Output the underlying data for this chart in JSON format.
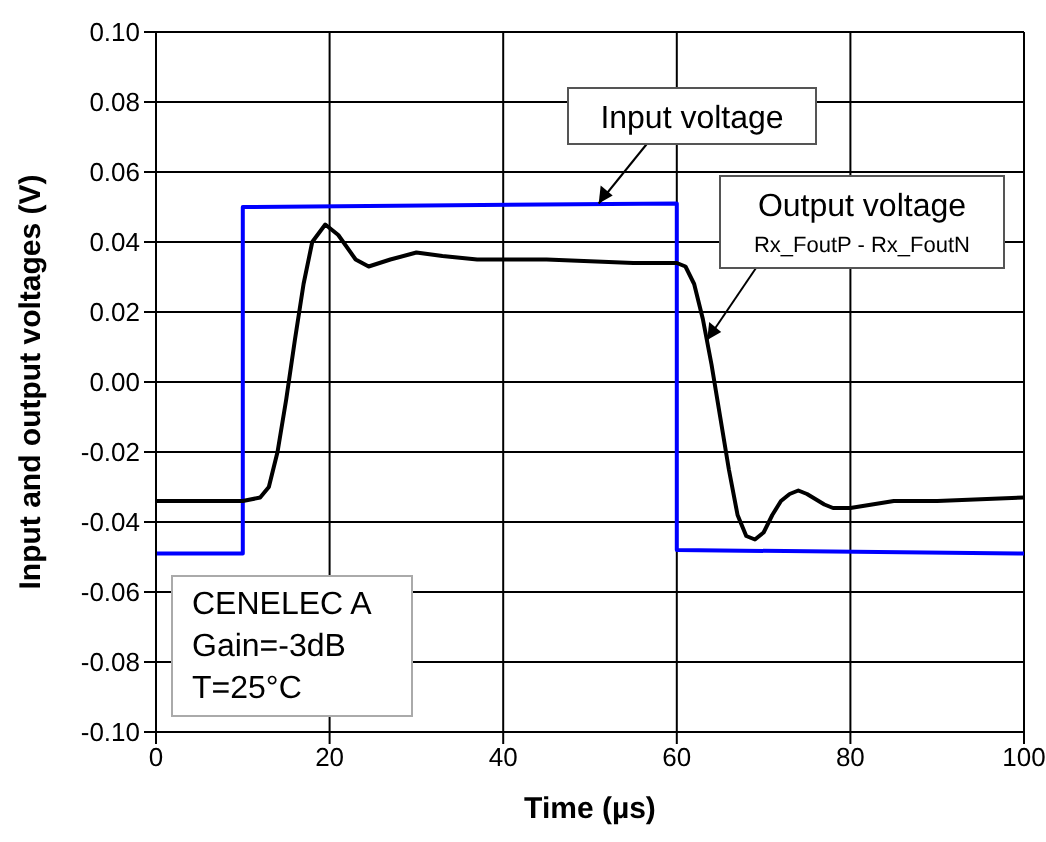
{
  "chart_data": {
    "type": "line",
    "xlabel": "Time (µs)",
    "ylabel": "Input and output voltages (V)",
    "xlim": [
      0,
      100
    ],
    "xticks": [
      0,
      20,
      40,
      60,
      80,
      100
    ],
    "ylim": [
      -0.1,
      0.1
    ],
    "yticks": [
      {
        "value": -0.1,
        "label": "-0.10"
      },
      {
        "value": -0.08,
        "label": "-0.08"
      },
      {
        "value": -0.06,
        "label": "-0.06"
      },
      {
        "value": -0.04,
        "label": "-0.04"
      },
      {
        "value": -0.02,
        "label": "-0.02"
      },
      {
        "value": 0,
        "label": "0.00"
      },
      {
        "value": 0.02,
        "label": "0.02"
      },
      {
        "value": 0.04,
        "label": "0.04"
      },
      {
        "value": 0.06,
        "label": "0.06"
      },
      {
        "value": 0.08,
        "label": "0.08"
      },
      {
        "value": 0.1,
        "label": "0.10"
      }
    ],
    "grid": true,
    "legend": false,
    "marker": "none",
    "line_style": "solid",
    "series": [
      {
        "name": "Input voltage",
        "color": "#0000ff",
        "x": [
          0,
          10,
          10,
          60,
          60,
          100
        ],
        "values": [
          -0.049,
          -0.049,
          0.05,
          0.051,
          -0.048,
          -0.049
        ]
      },
      {
        "name": "Output voltage",
        "color": "#000000",
        "x": [
          0,
          10,
          12,
          13,
          14,
          15,
          16,
          17,
          18,
          19.5,
          21,
          23,
          24.5,
          27,
          30,
          33,
          37,
          45,
          55,
          60,
          61,
          62,
          63,
          64,
          65,
          66,
          67,
          68,
          69,
          70,
          71,
          72,
          73,
          74,
          75,
          77,
          78,
          80,
          85,
          90,
          100
        ],
        "values": [
          -0.034,
          -0.034,
          -0.033,
          -0.03,
          -0.02,
          -0.005,
          0.012,
          0.028,
          0.04,
          0.045,
          0.042,
          0.035,
          0.033,
          0.035,
          0.037,
          0.036,
          0.035,
          0.035,
          0.034,
          0.034,
          0.033,
          0.028,
          0.018,
          0.005,
          -0.01,
          -0.025,
          -0.038,
          -0.044,
          -0.045,
          -0.043,
          -0.038,
          -0.034,
          -0.032,
          -0.031,
          -0.032,
          -0.035,
          -0.036,
          -0.036,
          -0.034,
          -0.034,
          -0.033
        ]
      }
    ],
    "annotations": [
      "Rx_FoutP - Rx_FoutN",
      "CENELEC A",
      "Gain=-3dB",
      "T=25°C"
    ]
  }
}
